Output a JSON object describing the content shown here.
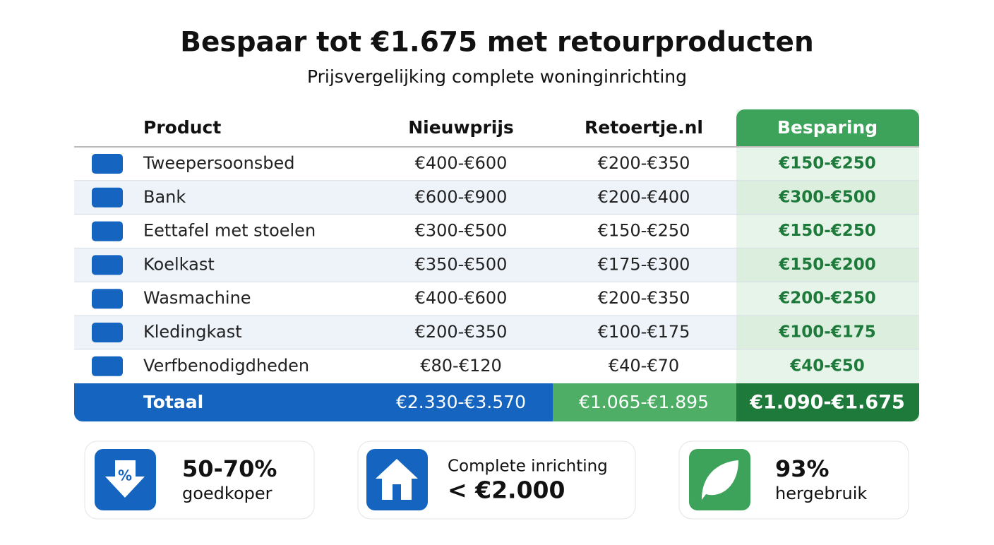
{
  "header": {
    "title": "Bespaar tot €1.675 met retourproducten",
    "subtitle": "Prijsvergelijking complete woninginrichting"
  },
  "table": {
    "columns": [
      "Product",
      "Nieuwprijs",
      "Retoertje.nl",
      "Besparing"
    ],
    "rows": [
      [
        "Tweepersoonsbed",
        "€400-€600",
        "€200-€350",
        "€150-€250"
      ],
      [
        "Bank",
        "€600-€900",
        "€200-€400",
        "€300-€500"
      ],
      [
        "Eettafel met stoelen",
        "€300-€500",
        "€150-€250",
        "€150-€250"
      ],
      [
        "Koelkast",
        "€350-€500",
        "€175-€300",
        "€150-€200"
      ],
      [
        "Wasmachine",
        "€400-€600",
        "€200-€350",
        "€200-€250"
      ],
      [
        "Kledingkast",
        "€200-€350",
        "€100-€175",
        "€100-€175"
      ],
      [
        "Verfbenodigdheden",
        "€80-€120",
        "€40-€70",
        "€40-€50"
      ]
    ],
    "total": [
      "Totaal",
      "€2.330-€3.570",
      "€1.065-€1.895",
      "€1.090-€1.675"
    ]
  },
  "cards": [
    {
      "value": "50-70%",
      "label": "goedkoper"
    },
    {
      "label": "Complete inrichting",
      "value": "< €2.000"
    },
    {
      "value": "93%",
      "label": "hergebruik"
    }
  ]
}
